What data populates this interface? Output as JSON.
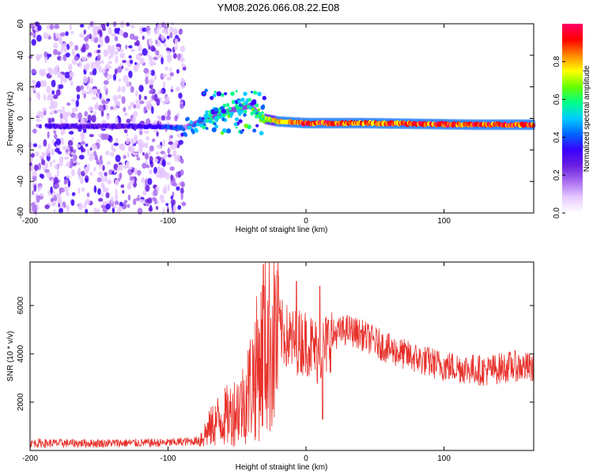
{
  "figure_title": "YM08.2026.066.08.22.E08",
  "colors": {
    "snr_line": "#e8302a",
    "frame": "#000000",
    "colormap": [
      "#ffffff",
      "#e6c9ff",
      "#a86cf0",
      "#6a1fe0",
      "#3a00ff",
      "#0066ff",
      "#00ccff",
      "#00ff88",
      "#66ff00",
      "#ffff00",
      "#ff8800",
      "#ff0000",
      "#ff0066"
    ]
  },
  "chart_data": [
    {
      "type": "heatmap",
      "title": "YM08.2026.066.08.22.E08",
      "xlabel": "Height of straight line (km)",
      "ylabel": "Frequency (Hz)",
      "xlim": [
        -200,
        165
      ],
      "ylim": [
        -60,
        60
      ],
      "xticks": [
        -200,
        -100,
        0,
        100
      ],
      "yticks": [
        -60,
        -40,
        -20,
        0,
        20,
        40,
        60
      ],
      "colorbar": {
        "label": "Normalized spectral amplitude",
        "range": [
          0,
          1
        ],
        "ticks": [
          0.0,
          0.2,
          0.4,
          0.6,
          0.8
        ]
      },
      "features": {
        "noise_region_x": [
          -200,
          -88
        ],
        "main_trace": [
          {
            "x": -188,
            "y": -5,
            "amp": 0.35
          },
          {
            "x": -150,
            "y": -5,
            "amp": 0.3
          },
          {
            "x": -110,
            "y": -5,
            "amp": 0.35
          },
          {
            "x": -88,
            "y": -6,
            "amp": 0.45
          },
          {
            "x": -70,
            "y": 0,
            "amp": 0.55
          },
          {
            "x": -55,
            "y": 5,
            "amp": 0.6
          },
          {
            "x": -40,
            "y": 8,
            "amp": 0.6
          },
          {
            "x": -32,
            "y": 0,
            "amp": 0.7
          },
          {
            "x": -20,
            "y": -2,
            "amp": 0.85
          },
          {
            "x": 0,
            "y": -3,
            "amp": 0.95
          },
          {
            "x": 40,
            "y": -3,
            "amp": 0.9
          },
          {
            "x": 80,
            "y": -3.5,
            "amp": 0.95
          },
          {
            "x": 120,
            "y": -4,
            "amp": 0.95
          },
          {
            "x": 165,
            "y": -4,
            "amp": 0.95
          }
        ]
      }
    },
    {
      "type": "line",
      "xlabel": "Height of straight line (km)",
      "ylabel": "SNR (10 * v/v)",
      "xlim": [
        -200,
        165
      ],
      "ylim": [
        0,
        7800
      ],
      "xticks": [
        -200,
        -100,
        0,
        100
      ],
      "yticks": [
        2000,
        4000,
        6000
      ],
      "series": [
        {
          "name": "SNR",
          "envelope": [
            {
              "x": -200,
              "y": 300
            },
            {
              "x": -150,
              "y": 300
            },
            {
              "x": -100,
              "y": 320
            },
            {
              "x": -78,
              "y": 400
            },
            {
              "x": -65,
              "y": 1200
            },
            {
              "x": -55,
              "y": 1500
            },
            {
              "x": -45,
              "y": 2000
            },
            {
              "x": -35,
              "y": 3500
            },
            {
              "x": -28,
              "y": 4500
            },
            {
              "x": -20,
              "y": 5000
            },
            {
              "x": -10,
              "y": 4500
            },
            {
              "x": 0,
              "y": 4500
            },
            {
              "x": 10,
              "y": 4000
            },
            {
              "x": 20,
              "y": 4800
            },
            {
              "x": 30,
              "y": 5000
            },
            {
              "x": 40,
              "y": 4800
            },
            {
              "x": 60,
              "y": 4200
            },
            {
              "x": 80,
              "y": 3800
            },
            {
              "x": 100,
              "y": 3500
            },
            {
              "x": 130,
              "y": 3300
            },
            {
              "x": 150,
              "y": 3500
            },
            {
              "x": 165,
              "y": 3400
            }
          ],
          "peaks": [
            {
              "x": -31,
              "y": 7700
            },
            {
              "x": -20,
              "y": 7200
            },
            {
              "x": -7,
              "y": 7000
            },
            {
              "x": 10,
              "y": 6800
            },
            {
              "x": 12,
              "y": 1300
            }
          ]
        }
      ]
    }
  ]
}
